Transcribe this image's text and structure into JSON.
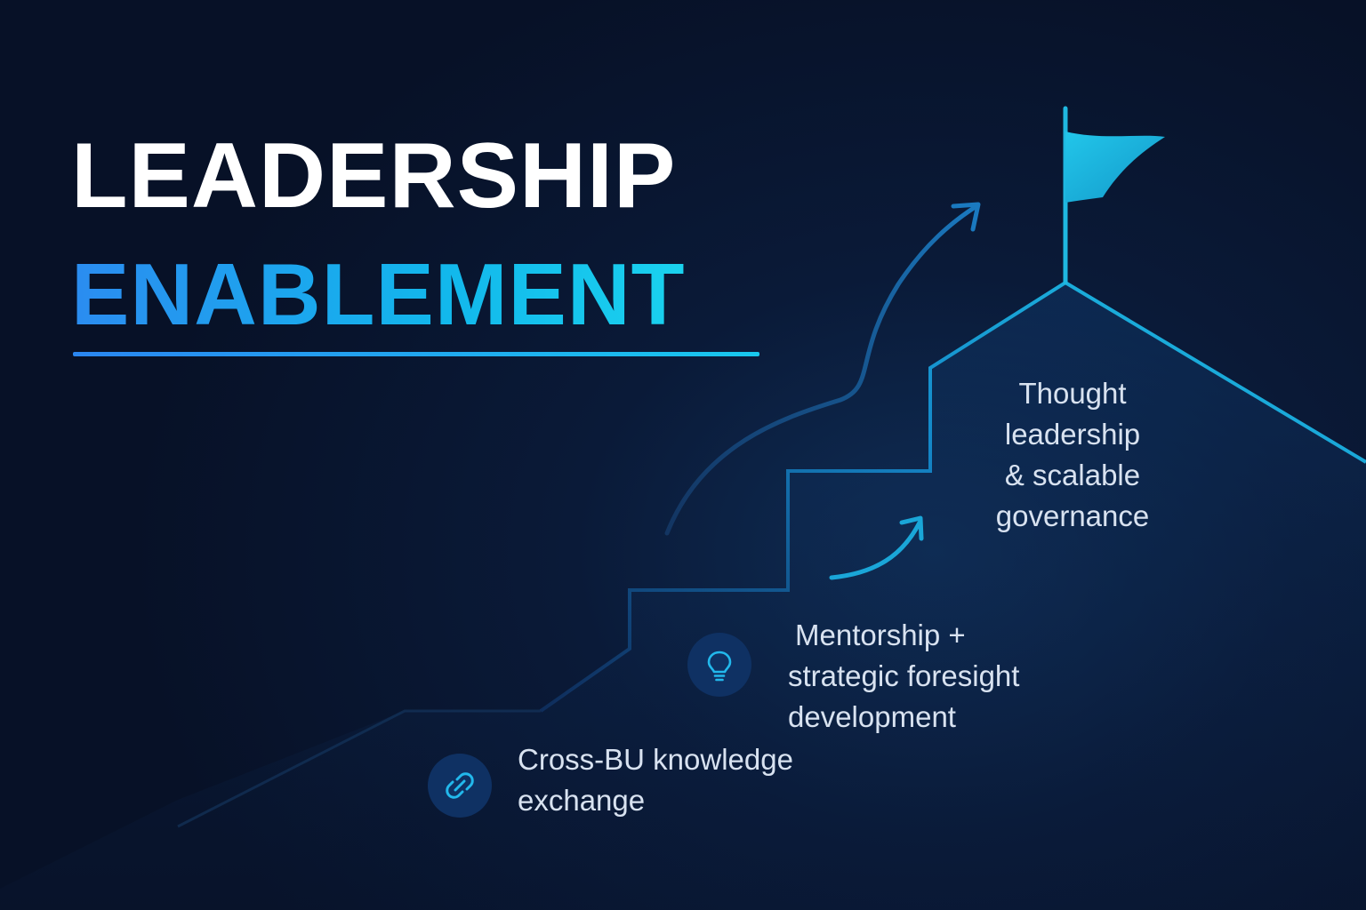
{
  "title": {
    "line1": "LEADERSHIP",
    "line2": "ENABLEMENT"
  },
  "steps": [
    {
      "icon": "link-icon",
      "lines": [
        "Cross-BU knowledge",
        "exchange"
      ]
    },
    {
      "icon": "lightbulb-icon",
      "lines": [
        "Mentorship +",
        "strategic foresight",
        "development"
      ]
    },
    {
      "icon": "flag-icon",
      "lines": [
        "Thought",
        "leadership",
        "& scalable",
        "governance"
      ]
    }
  ],
  "colors": {
    "background": "#0a1630",
    "accent": "#18c8ee",
    "accent_blue": "#2a86f0",
    "text": "#d8e2f0",
    "icon_circle": "#0f3163"
  }
}
